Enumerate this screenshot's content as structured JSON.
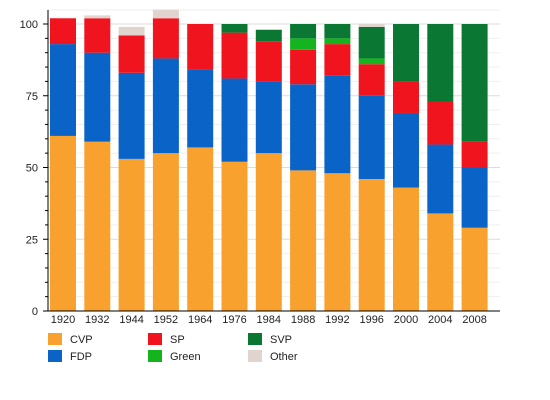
{
  "chart_data": {
    "type": "bar",
    "stacked": true,
    "title": "",
    "xlabel": "",
    "ylabel": "",
    "ylim": [
      0,
      105
    ],
    "yticks": [
      0,
      25,
      50,
      75,
      100
    ],
    "grid": true,
    "legend_position": "bottom",
    "categories": [
      "1920",
      "1932",
      "1944",
      "1952",
      "1964",
      "1976",
      "1984",
      "1988",
      "1992",
      "1996",
      "2000",
      "2004",
      "2008"
    ],
    "series": [
      {
        "name": "CVP",
        "color": "#f9a12e",
        "values": [
          61,
          59,
          53,
          55,
          57,
          52,
          55,
          49,
          48,
          46,
          43,
          34,
          29
        ]
      },
      {
        "name": "FDP",
        "color": "#0a64c8",
        "values": [
          32,
          31,
          30,
          33,
          27,
          29,
          25,
          30,
          34,
          29,
          26,
          24,
          21
        ]
      },
      {
        "name": "SP",
        "color": "#f0141e",
        "values": [
          9,
          12,
          13,
          14,
          16,
          16,
          14,
          12,
          11,
          11,
          11,
          15,
          9
        ]
      },
      {
        "name": "SVP",
        "color": "#0a7832",
        "values": [
          0,
          0,
          0,
          0,
          0,
          3,
          4,
          5,
          5,
          11,
          20,
          27,
          41
        ]
      },
      {
        "name": "Green",
        "color": "#14b41e",
        "values": [
          0,
          0,
          0,
          0,
          0,
          0,
          0,
          4,
          2,
          2,
          0,
          0,
          0
        ]
      },
      {
        "name": "Other",
        "color": "#e0d4cf",
        "values": [
          0,
          1,
          3,
          3,
          0,
          0,
          0,
          0,
          0,
          1,
          0,
          0,
          0
        ]
      }
    ],
    "stack_order": [
      "CVP",
      "FDP",
      "SP",
      "Green",
      "SVP",
      "Other"
    ],
    "legend_order": [
      "CVP",
      "SP",
      "SVP",
      "FDP",
      "Green",
      "Other"
    ]
  }
}
